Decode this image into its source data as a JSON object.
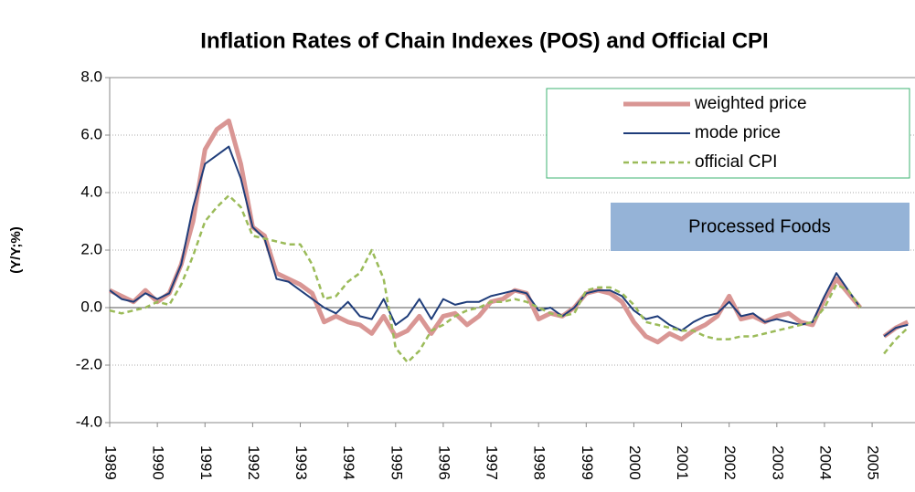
{
  "chart_data": {
    "type": "line",
    "title": "Inflation Rates of Chain Indexes  (POS) and Official CPI",
    "y_label": "(Y/Y;%)",
    "annotation": "Processed Foods",
    "x": [
      1989,
      1989.25,
      1989.5,
      1989.75,
      1990,
      1990.25,
      1990.5,
      1990.75,
      1991,
      1991.25,
      1991.5,
      1991.75,
      1992,
      1992.25,
      1992.5,
      1992.75,
      1993,
      1993.25,
      1993.5,
      1993.75,
      1994,
      1994.25,
      1994.5,
      1994.75,
      1995,
      1995.25,
      1995.5,
      1995.75,
      1996,
      1996.25,
      1996.5,
      1996.75,
      1997,
      1997.25,
      1997.5,
      1997.75,
      1998,
      1998.25,
      1998.5,
      1998.75,
      1999,
      1999.25,
      1999.5,
      1999.75,
      2000,
      2000.25,
      2000.5,
      2000.75,
      2001,
      2001.25,
      2001.5,
      2001.75,
      2002,
      2002.25,
      2002.5,
      2002.75,
      2003,
      2003.25,
      2003.5,
      2003.75,
      2004,
      2004.25,
      2004.5,
      2004.75,
      2005,
      2005.25,
      2005.5,
      2005.75
    ],
    "series": [
      {
        "name": "weighted price",
        "color": "#d99694",
        "width": 5,
        "dashed": false,
        "values": [
          0.6,
          0.4,
          0.2,
          0.6,
          0.2,
          0.5,
          1.5,
          3.0,
          5.5,
          6.2,
          6.5,
          5.0,
          2.8,
          2.5,
          1.2,
          1.0,
          0.8,
          0.5,
          -0.5,
          -0.3,
          -0.5,
          -0.6,
          -0.9,
          -0.3,
          -1.0,
          -0.8,
          -0.3,
          -0.9,
          -0.3,
          -0.2,
          -0.6,
          -0.3,
          0.2,
          0.3,
          0.6,
          0.5,
          -0.4,
          -0.2,
          -0.3,
          0.0,
          0.5,
          0.6,
          0.5,
          0.2,
          -0.5,
          -1.0,
          -1.2,
          -0.9,
          -1.1,
          -0.8,
          -0.6,
          -0.3,
          0.4,
          -0.4,
          -0.3,
          -0.5,
          -0.3,
          -0.2,
          -0.5,
          -0.6,
          0.3,
          1.0,
          0.5,
          0.0,
          null,
          -1.0,
          -0.7,
          -0.5
        ]
      },
      {
        "name": "mode price",
        "color": "#1f3d7a",
        "width": 2,
        "dashed": false,
        "values": [
          0.6,
          0.3,
          0.2,
          0.5,
          0.3,
          0.5,
          1.5,
          3.5,
          5.0,
          5.3,
          5.6,
          4.5,
          2.8,
          2.4,
          1.0,
          0.9,
          0.6,
          0.3,
          0.0,
          -0.2,
          0.2,
          -0.3,
          -0.4,
          0.3,
          -0.6,
          -0.3,
          0.3,
          -0.4,
          0.3,
          0.1,
          0.2,
          0.2,
          0.4,
          0.5,
          0.6,
          0.5,
          -0.1,
          0.0,
          -0.3,
          0.0,
          0.5,
          0.6,
          0.6,
          0.4,
          -0.1,
          -0.4,
          -0.3,
          -0.6,
          -0.8,
          -0.5,
          -0.3,
          -0.2,
          0.2,
          -0.3,
          -0.2,
          -0.5,
          -0.4,
          -0.5,
          -0.6,
          -0.5,
          0.4,
          1.2,
          0.6,
          0.0,
          null,
          -1.0,
          -0.7,
          -0.6
        ]
      },
      {
        "name": "official CPI",
        "color": "#9bbb59",
        "width": 2.5,
        "dashed": true,
        "values": [
          -0.1,
          -0.2,
          -0.1,
          0.0,
          0.2,
          0.1,
          0.8,
          1.8,
          3.0,
          3.5,
          3.9,
          3.5,
          2.5,
          2.4,
          2.3,
          2.2,
          2.2,
          1.5,
          0.3,
          0.4,
          0.9,
          1.2,
          2.0,
          1.0,
          -1.4,
          -1.9,
          -1.5,
          -0.8,
          -0.6,
          -0.3,
          -0.1,
          0.0,
          0.2,
          0.2,
          0.3,
          0.2,
          0.0,
          -0.2,
          -0.3,
          -0.2,
          0.6,
          0.7,
          0.7,
          0.5,
          0.1,
          -0.5,
          -0.6,
          -0.7,
          -0.8,
          -0.8,
          -1.0,
          -1.1,
          -1.1,
          -1.0,
          -1.0,
          -0.9,
          -0.8,
          -0.7,
          -0.6,
          -0.5,
          0.0,
          0.8,
          0.6,
          0.0,
          null,
          -1.6,
          -1.1,
          -0.7
        ]
      }
    ],
    "xlim": [
      1989,
      2005.9
    ],
    "xticks": [
      1989,
      1990,
      1991,
      1992,
      1993,
      1994,
      1995,
      1996,
      1997,
      1998,
      1999,
      2000,
      2001,
      2002,
      2003,
      2004,
      2005
    ],
    "ylim": [
      -4,
      8
    ],
    "yticks": [
      {
        "value": -4,
        "label": "-4.0"
      },
      {
        "value": -2,
        "label": "-2.0"
      },
      {
        "value": 0,
        "label": "0.0"
      },
      {
        "value": 2,
        "label": "2.0"
      },
      {
        "value": 4,
        "label": "4.0"
      },
      {
        "value": 6,
        "label": "6.0"
      },
      {
        "value": 8,
        "label": "8.0"
      }
    ],
    "negative_tick_color": "#ff0000",
    "grid": true,
    "legend": "upper right"
  }
}
